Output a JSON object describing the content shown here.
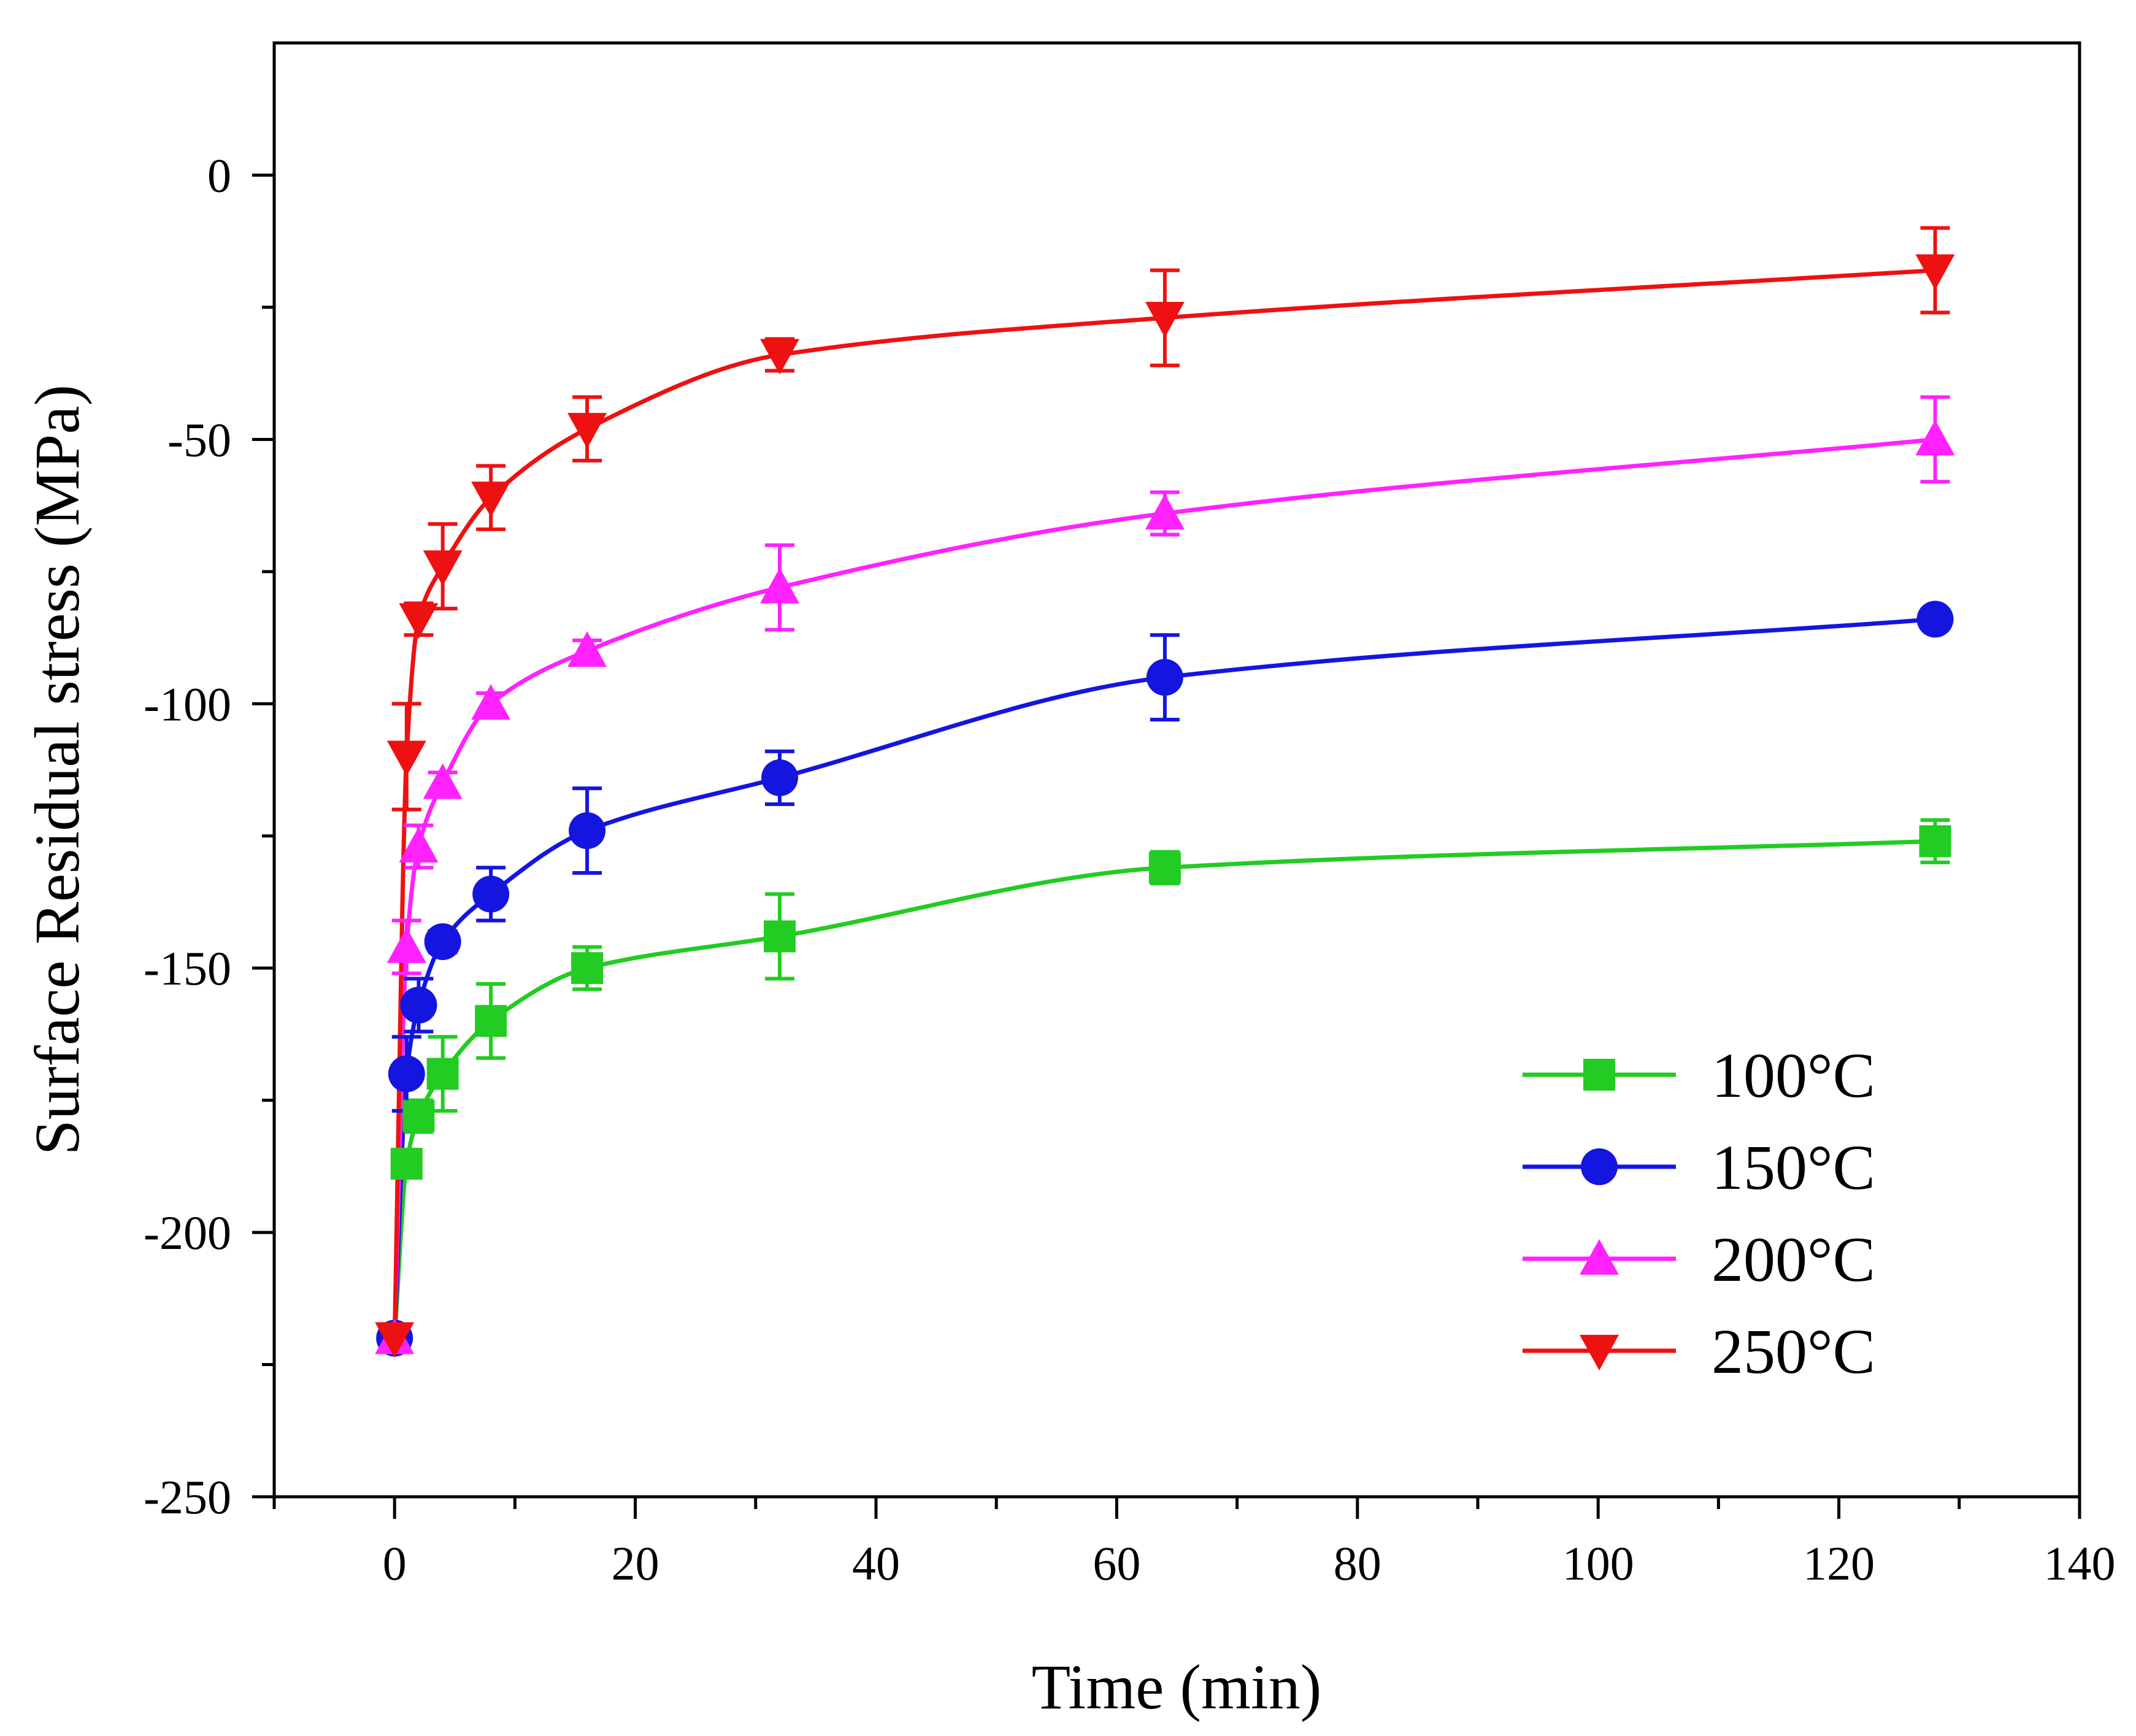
{
  "chart_data": {
    "type": "line",
    "title": "",
    "xlabel": "Time (min)",
    "ylabel": "Surface Residual stress (MPa)",
    "xlim": [
      -10,
      140
    ],
    "ylim": [
      -250,
      25
    ],
    "x_ticks": [
      0,
      20,
      40,
      60,
      80,
      100,
      120,
      140
    ],
    "y_ticks": [
      0,
      -50,
      -100,
      -150,
      -200,
      -250
    ],
    "x_tick_labels": [
      "0",
      "20",
      "40",
      "60",
      "80",
      "100",
      "120",
      "140"
    ],
    "y_tick_labels": [
      "0",
      "-50",
      "-100",
      "-150",
      "-200",
      "-250"
    ],
    "grid": false,
    "legend_position": "bottom-right",
    "x": [
      0,
      1,
      2,
      4,
      8,
      16,
      32,
      64,
      128
    ],
    "series": [
      {
        "name": "100°C",
        "color": "#22cc22",
        "marker": "square",
        "values": [
          -220,
          -187,
          -178,
          -170,
          -160,
          -150,
          -144,
          -131,
          -126
        ],
        "errors": [
          2,
          2,
          3,
          7,
          7,
          4,
          8,
          3,
          4
        ]
      },
      {
        "name": "150°C",
        "color": "#1515e0",
        "marker": "circle",
        "values": [
          -220,
          -170,
          -157,
          -145,
          -136,
          -124,
          -114,
          -95,
          -84
        ],
        "errors": [
          2,
          7,
          5,
          2,
          5,
          8,
          5,
          8,
          1
        ]
      },
      {
        "name": "200°C",
        "color": "#ff22ff",
        "marker": "triangle-up",
        "values": [
          -220,
          -146,
          -127,
          -115,
          -100,
          -90,
          -78,
          -64,
          -50
        ],
        "errors": [
          2,
          5,
          4,
          2,
          2,
          2,
          8,
          4,
          8
        ]
      },
      {
        "name": "250°C",
        "color": "#ee1111",
        "marker": "triangle-down",
        "values": [
          -220,
          -110,
          -84,
          -74,
          -61,
          -48,
          -34,
          -27,
          -18
        ],
        "errors": [
          2,
          10,
          3,
          8,
          6,
          6,
          3,
          9,
          8
        ]
      }
    ]
  }
}
